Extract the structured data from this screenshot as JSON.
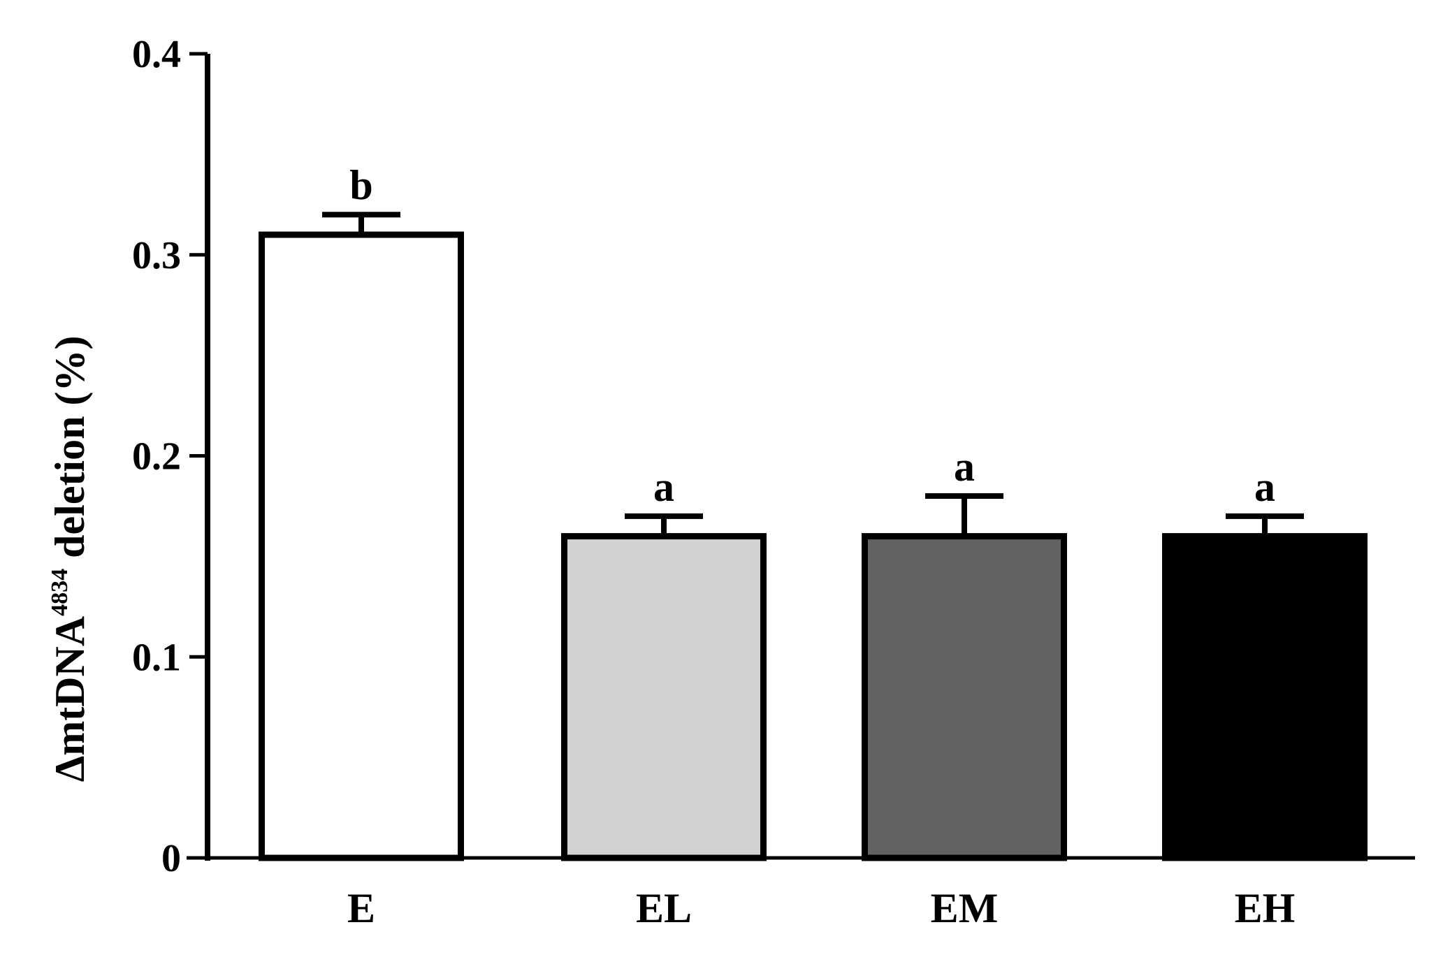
{
  "chart_data": {
    "type": "bar",
    "title": "",
    "xlabel": "",
    "ylabel": {
      "prefix": "ΔmtDNA",
      "superscript": "4834",
      "suffix": " deletion (%)"
    },
    "ylim": [
      0,
      0.4
    ],
    "yticks": [
      {
        "value": 0,
        "label": "0"
      },
      {
        "value": 0.1,
        "label": "0.1"
      },
      {
        "value": 0.2,
        "label": "0.2"
      },
      {
        "value": 0.3,
        "label": "0.3"
      },
      {
        "value": 0.4,
        "label": "0.4"
      }
    ],
    "categories": [
      "E",
      "EL",
      "EM",
      "EH"
    ],
    "values": [
      0.31,
      0.16,
      0.16,
      0.16
    ],
    "errors": [
      0.01,
      0.01,
      0.02,
      0.01
    ],
    "significance": [
      "b",
      "a",
      "a",
      "a"
    ],
    "colors": [
      "#ffffff",
      "#d3d3d3",
      "#626262",
      "#000000"
    ],
    "grid": false,
    "legend": "none"
  }
}
